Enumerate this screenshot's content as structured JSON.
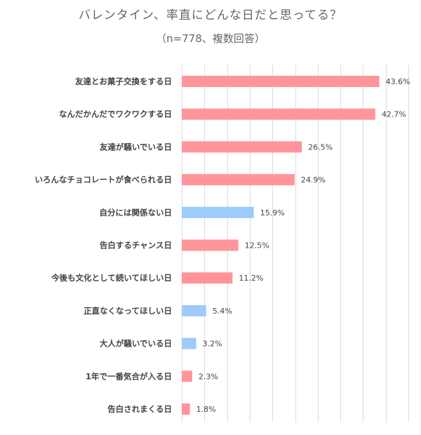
{
  "chart_data": {
    "type": "bar",
    "orientation": "horizontal",
    "title": "バレンタイン、率直にどんな日だと思ってる？",
    "subtitle": "（n=778、複数回答）",
    "xlabel": "",
    "ylabel": "",
    "xlim": [
      0,
      50
    ],
    "grid": true,
    "grid_step": 5,
    "legend": "none",
    "value_suffix": "%",
    "colors": {
      "positive": "#FF959A",
      "negative": "#9DCBFA"
    },
    "categories": [
      "友達とお菓子交換をする日",
      "なんだかんだでワクワクする日",
      "友達が騒いでいる日",
      "いろんなチョコレートが食べられる日",
      "自分には関係ない日",
      "告白するチャンス日",
      "今後も文化として続いてほしい日",
      "正直なくなってほしい日",
      "大人が騒いでいる日",
      "1年で一番気合が入る日",
      "告白されまくる日"
    ],
    "values": [
      43.6,
      42.7,
      26.5,
      24.9,
      15.9,
      12.5,
      11.2,
      5.4,
      3.2,
      2.3,
      1.8
    ],
    "value_labels": [
      "43.6%",
      "42.7%",
      "26.5%",
      "24.9%",
      "15.9%",
      "12.5%",
      "11.2%",
      "5.4%",
      "3.2%",
      "2.3%",
      "1.8%"
    ],
    "bar_color_keys": [
      "positive",
      "positive",
      "positive",
      "positive",
      "negative",
      "positive",
      "positive",
      "negative",
      "negative",
      "positive",
      "positive"
    ]
  }
}
